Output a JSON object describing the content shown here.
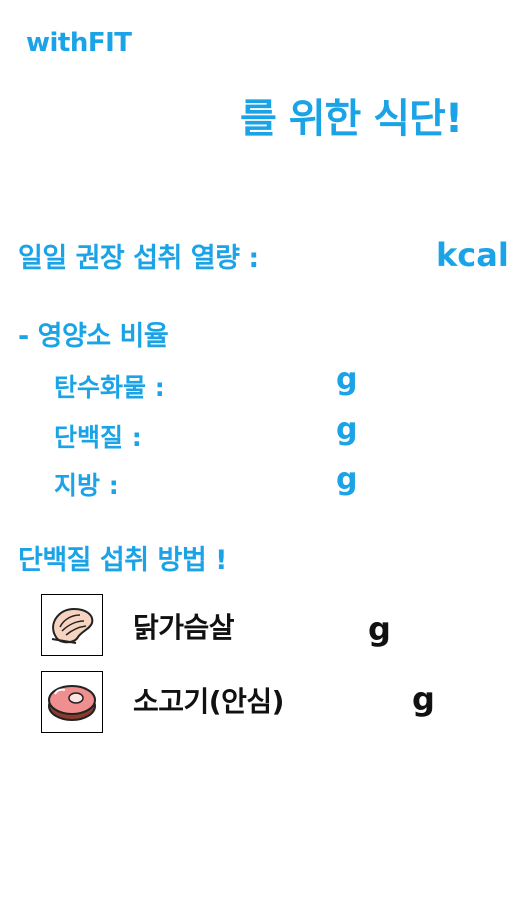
{
  "app": {
    "brand": "withFIT",
    "headline": "를 위한 식단!"
  },
  "calories": {
    "label": "일일 권장 섭취 열량 :",
    "unit": "kcal"
  },
  "nutrients": {
    "section_title": "- 영양소 비율",
    "items": [
      {
        "label": "탄수화물 :",
        "unit": "g"
      },
      {
        "label": "단백질 :",
        "unit": "g"
      },
      {
        "label": "지방 :",
        "unit": "g"
      }
    ]
  },
  "protein": {
    "section_title": "단백질 섭취 방법 !",
    "foods": [
      {
        "name": "닭가슴살",
        "unit": "g",
        "icon": "chicken-breast-icon"
      },
      {
        "name": "소고기(안심)",
        "unit": "g",
        "icon": "beef-steak-icon"
      }
    ]
  },
  "colors": {
    "accent": "#1aa3e6",
    "text_dark": "#111111"
  }
}
